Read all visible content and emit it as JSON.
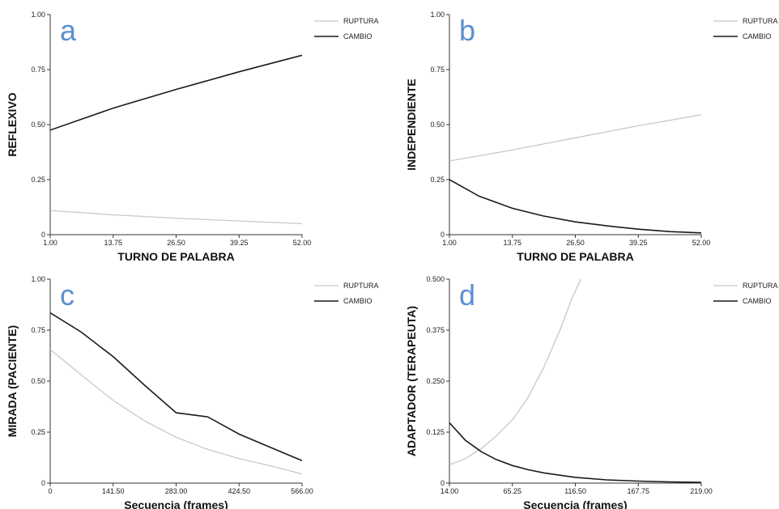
{
  "chart_data": [
    {
      "type": "line",
      "panel_letter": "a",
      "xlabel": "TURNO DE PALABRA",
      "ylabel": "REFLEXIVO",
      "xlim": [
        1,
        52
      ],
      "ylim": [
        0,
        1
      ],
      "xticks": [
        "1.00",
        "13.75",
        "26.50",
        "39.25",
        "52.00"
      ],
      "xtick_values": [
        1,
        13.75,
        26.5,
        39.25,
        52
      ],
      "yticks": [
        "0",
        "0.25",
        "0.50",
        "0.75",
        "1.00"
      ],
      "ytick_values": [
        0,
        0.25,
        0.5,
        0.75,
        1
      ],
      "legend_position": "top-right",
      "series": [
        {
          "name": "RUPTURA",
          "color": "#c8c8c8",
          "x": [
            1,
            13.75,
            26.5,
            39.25,
            52
          ],
          "y": [
            0.11,
            0.09,
            0.075,
            0.062,
            0.05
          ]
        },
        {
          "name": "CAMBIO",
          "color": "#1a1a1a",
          "x": [
            1,
            13.75,
            26.5,
            39.25,
            52
          ],
          "y": [
            0.475,
            0.575,
            0.66,
            0.74,
            0.815
          ]
        }
      ]
    },
    {
      "type": "line",
      "panel_letter": "b",
      "xlabel": "TURNO DE PALABRA",
      "ylabel": "INDEPENDIENTE",
      "xlim": [
        1,
        52
      ],
      "ylim": [
        0,
        1
      ],
      "xticks": [
        "1.00",
        "13.75",
        "26.50",
        "39.25",
        "52.00"
      ],
      "xtick_values": [
        1,
        13.75,
        26.5,
        39.25,
        52
      ],
      "yticks": [
        "0",
        "0.25",
        "0.50",
        "0.75",
        "1.00"
      ],
      "ytick_values": [
        0,
        0.25,
        0.5,
        0.75,
        1
      ],
      "legend_position": "top-right",
      "series": [
        {
          "name": "RUPTURA",
          "color": "#c8c8c8",
          "x": [
            1,
            13.75,
            26.5,
            39.25,
            52
          ],
          "y": [
            0.335,
            0.385,
            0.44,
            0.495,
            0.545
          ]
        },
        {
          "name": "CAMBIO",
          "color": "#1a1a1a",
          "x": [
            1,
            7,
            13.75,
            20,
            26.5,
            32.9,
            39.25,
            45.6,
            52
          ],
          "y": [
            0.25,
            0.175,
            0.12,
            0.085,
            0.058,
            0.04,
            0.025,
            0.014,
            0.008
          ]
        }
      ]
    },
    {
      "type": "line",
      "panel_letter": "c",
      "xlabel": "Secuencia (frames)",
      "ylabel": "MIRADA (PACIENTE)",
      "xlim": [
        0,
        566
      ],
      "ylim": [
        0,
        1
      ],
      "xticks": [
        "0",
        "141.50",
        "283.00",
        "424.50",
        "566.00"
      ],
      "xtick_values": [
        0,
        141.5,
        283,
        424.5,
        566
      ],
      "yticks": [
        "0",
        "0.25",
        "0.50",
        "0.75",
        "1.00"
      ],
      "ytick_values": [
        0,
        0.25,
        0.5,
        0.75,
        1
      ],
      "legend_position": "top-right",
      "series": [
        {
          "name": "RUPTURA",
          "color": "#c8c8c8",
          "x": [
            0,
            70,
            141.5,
            212,
            283,
            354,
            424.5,
            495,
            566
          ],
          "y": [
            0.655,
            0.53,
            0.405,
            0.305,
            0.225,
            0.165,
            0.12,
            0.085,
            0.045
          ]
        },
        {
          "name": "CAMBIO",
          "color": "#1a1a1a",
          "x": [
            0,
            70,
            141.5,
            212,
            283,
            354,
            424.5,
            495,
            566
          ],
          "y": [
            0.835,
            0.74,
            0.62,
            0.48,
            0.345,
            0.325,
            0.24,
            0.175,
            0.11
          ]
        }
      ]
    },
    {
      "type": "line",
      "panel_letter": "d",
      "xlabel": "Secuencia (frames)",
      "ylabel": "ADAPTADOR (TERAPEUTA)",
      "xlim": [
        14,
        219
      ],
      "ylim": [
        0,
        0.5
      ],
      "xticks": [
        "14.00",
        "65.25",
        "116.50",
        "167.75",
        "219.00"
      ],
      "xtick_values": [
        14,
        65.25,
        116.5,
        167.75,
        219
      ],
      "yticks": [
        "0",
        "0.125",
        "0.250",
        "0.375",
        "0.500"
      ],
      "ytick_values": [
        0,
        0.125,
        0.25,
        0.375,
        0.5
      ],
      "legend_position": "top-right",
      "series": [
        {
          "name": "RUPTURA",
          "color": "#c8c8c8",
          "x": [
            14,
            27,
            40,
            52,
            65.25,
            78,
            91,
            104,
            114,
            121
          ],
          "y": [
            0.045,
            0.06,
            0.085,
            0.115,
            0.155,
            0.21,
            0.285,
            0.375,
            0.455,
            0.5
          ]
        },
        {
          "name": "CAMBIO",
          "color": "#1a1a1a",
          "x": [
            14,
            27,
            40,
            52,
            65.25,
            78,
            91,
            116.5,
            142,
            167.75,
            193,
            219
          ],
          "y": [
            0.148,
            0.105,
            0.077,
            0.058,
            0.043,
            0.033,
            0.025,
            0.014,
            0.008,
            0.005,
            0.003,
            0.002
          ]
        }
      ]
    }
  ]
}
